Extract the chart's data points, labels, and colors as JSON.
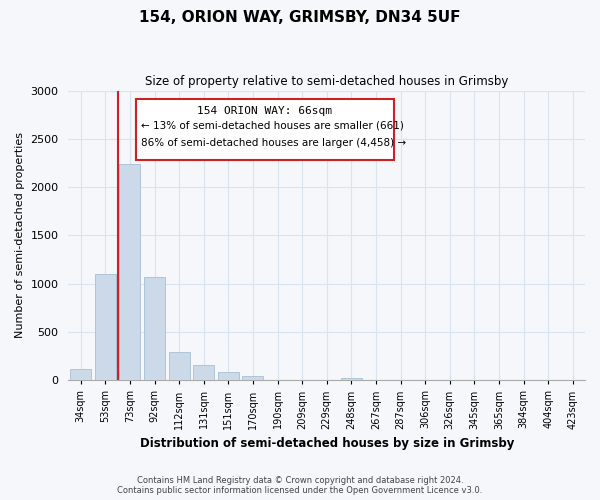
{
  "title": "154, ORION WAY, GRIMSBY, DN34 5UF",
  "subtitle": "Size of property relative to semi-detached houses in Grimsby",
  "xlabel": "Distribution of semi-detached houses by size in Grimsby",
  "ylabel": "Number of semi-detached properties",
  "bar_color": "#ccd9e8",
  "bar_edge_color": "#a8bfd4",
  "annotation_box_edge": "#cc2222",
  "property_line_color": "#cc2222",
  "categories": [
    "34sqm",
    "53sqm",
    "73sqm",
    "92sqm",
    "112sqm",
    "131sqm",
    "151sqm",
    "170sqm",
    "190sqm",
    "209sqm",
    "229sqm",
    "248sqm",
    "267sqm",
    "287sqm",
    "306sqm",
    "326sqm",
    "345sqm",
    "365sqm",
    "384sqm",
    "404sqm",
    "423sqm"
  ],
  "values": [
    120,
    1100,
    2240,
    1070,
    290,
    155,
    85,
    48,
    0,
    0,
    0,
    22,
    0,
    0,
    0,
    0,
    0,
    0,
    0,
    0,
    0
  ],
  "property_bin_index": 1,
  "annotation_title": "154 ORION WAY: 66sqm",
  "annotation_line1": "← 13% of semi-detached houses are smaller (661)",
  "annotation_line2": "86% of semi-detached houses are larger (4,458) →",
  "ylim": [
    0,
    3000
  ],
  "yticks": [
    0,
    500,
    1000,
    1500,
    2000,
    2500,
    3000
  ],
  "footer_line1": "Contains HM Land Registry data © Crown copyright and database right 2024.",
  "footer_line2": "Contains public sector information licensed under the Open Government Licence v3.0.",
  "bg_color": "#f5f7fa",
  "grid_color": "#d8e4f0"
}
